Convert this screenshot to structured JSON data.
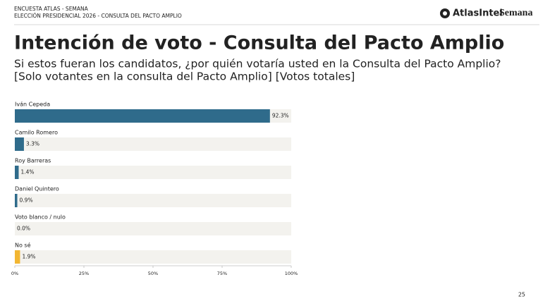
{
  "header": {
    "line1": "ENCUESTA ATLAS - SEMANA",
    "line2": "ELECCIÓN PRESIDENCIAL 2026 - CONSULTA DEL PACTO AMPLIO",
    "logo_left": "AtlasIntel",
    "logo_right": "Semana"
  },
  "page_number": "25",
  "chart_data": {
    "type": "bar",
    "orientation": "horizontal",
    "title": "Intención de voto - Consulta del Pacto Amplio",
    "subtitle": [
      "Si estos fueran los candidatos, ¿por quién votaría usted en la Consulta del Pacto Amplio?",
      "[Solo votantes en la consulta del Pacto Amplio] [Votos totales]"
    ],
    "categories": [
      "Iván Cepeda",
      "Camilo Romero",
      "Roy Barreras",
      "Daniel Quintero",
      "Voto blanco / nulo",
      "No sé"
    ],
    "values": [
      92.3,
      3.3,
      1.4,
      0.9,
      0.0,
      1.9
    ],
    "value_labels": [
      "92.3%",
      "3.3%",
      "1.4%",
      "0.9%",
      "0.0%",
      "1.9%"
    ],
    "colors": [
      "#2f6b8b",
      "#2f6b8b",
      "#2f6b8b",
      "#2f6b8b",
      "#2f6b8b",
      "#f2b632"
    ],
    "track_color": "#f3f2ee",
    "xlim": [
      0,
      100
    ],
    "xticks": [
      {
        "value": 0,
        "label": "0%"
      },
      {
        "value": 25,
        "label": "25%"
      },
      {
        "value": 50,
        "label": "50%"
      },
      {
        "value": 75,
        "label": "75%"
      },
      {
        "value": 100,
        "label": "100%"
      }
    ]
  }
}
